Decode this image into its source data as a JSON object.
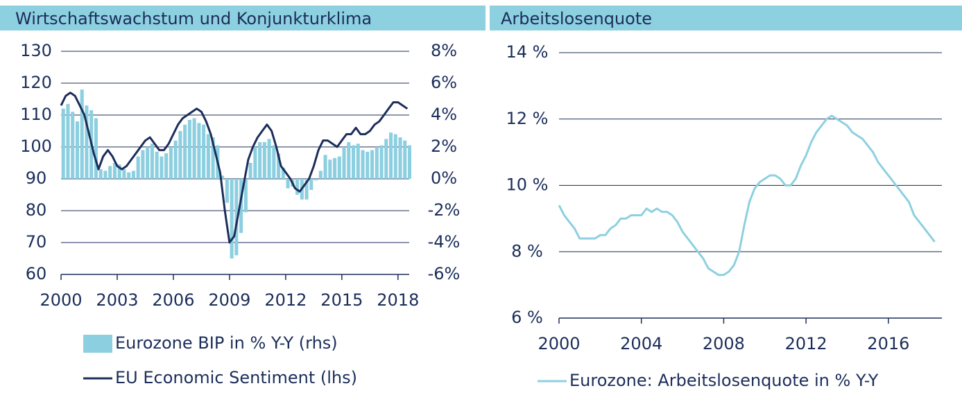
{
  "chart_data": [
    {
      "type": "combo",
      "title": "Wirtschaftswachstum und Konjunkturklima",
      "x": [
        2000,
        2000.25,
        2000.5,
        2000.75,
        2001,
        2001.25,
        2001.5,
        2001.75,
        2002,
        2002.25,
        2002.5,
        2002.75,
        2003,
        2003.25,
        2003.5,
        2003.75,
        2004,
        2004.25,
        2004.5,
        2004.75,
        2005,
        2005.25,
        2005.5,
        2005.75,
        2006,
        2006.25,
        2006.5,
        2006.75,
        2007,
        2007.25,
        2007.5,
        2007.75,
        2008,
        2008.25,
        2008.5,
        2008.75,
        2009,
        2009.25,
        2009.5,
        2009.75,
        2010,
        2010.25,
        2010.5,
        2010.75,
        2011,
        2011.25,
        2011.5,
        2011.75,
        2012,
        2012.25,
        2012.5,
        2012.75,
        2013,
        2013.25,
        2013.5,
        2013.75,
        2014,
        2014.25,
        2014.5,
        2014.75,
        2015,
        2015.25,
        2015.5,
        2015.75,
        2016,
        2016.25,
        2016.5,
        2016.75,
        2017,
        2017.25,
        2017.5,
        2017.75,
        2018,
        2018.25,
        2018.5
      ],
      "series": [
        {
          "name": "Eurozone BIP in % Y-Y (rhs)",
          "kind": "bar",
          "axis": "y2",
          "color": "#8ccfe0",
          "values": [
            4.4,
            4.7,
            4.2,
            3.6,
            5.6,
            4.6,
            4.3,
            3.8,
            0.6,
            0.5,
            0.8,
            1.0,
            0.9,
            0.6,
            0.4,
            0.5,
            1.4,
            1.8,
            2.0,
            2.2,
            1.7,
            1.4,
            1.6,
            2.0,
            2.4,
            3.0,
            3.4,
            3.7,
            3.8,
            3.5,
            3.4,
            2.8,
            2.6,
            2.1,
            0.2,
            -1.5,
            -5.0,
            -4.8,
            -3.4,
            -2.1,
            1.0,
            2.0,
            2.3,
            2.3,
            2.5,
            2.1,
            1.6,
            0.7,
            -0.6,
            -0.5,
            -1.0,
            -1.3,
            -1.3,
            -0.7,
            -0.1,
            0.5,
            1.5,
            1.2,
            1.3,
            1.4,
            2.0,
            2.3,
            2.1,
            2.2,
            1.8,
            1.7,
            1.8,
            2.0,
            2.1,
            2.5,
            2.9,
            2.8,
            2.6,
            2.4,
            2.1
          ]
        },
        {
          "name": "EU Economic Sentiment (lhs)",
          "kind": "line",
          "color": "#1b2d5a",
          "values": [
            113,
            116,
            117,
            116,
            113,
            110,
            104,
            98,
            93,
            97,
            99,
            97,
            94,
            93,
            94,
            96,
            98,
            100,
            102,
            103,
            101,
            99,
            99,
            101,
            104,
            107,
            109,
            110,
            111,
            112,
            111,
            108,
            104,
            98,
            92,
            80,
            70,
            72,
            80,
            88,
            96,
            100,
            103,
            105,
            107,
            105,
            100,
            94,
            92,
            90,
            87,
            86,
            88,
            90,
            94,
            99,
            102,
            102,
            101,
            100,
            102,
            104,
            104,
            106,
            104,
            104,
            105,
            107,
            108,
            110,
            112,
            114,
            114,
            113,
            112
          ]
        }
      ],
      "xlim": [
        2000,
        2018.6
      ],
      "xticks": [
        2000,
        2003,
        2006,
        2009,
        2012,
        2015,
        2018
      ],
      "ylim": [
        60,
        130
      ],
      "yticks": [
        60,
        70,
        80,
        90,
        100,
        110,
        120,
        130
      ],
      "y2lim": [
        -6,
        8
      ],
      "y2ticks": [
        {
          "value": -6,
          "label": "-6%"
        },
        {
          "value": -4,
          "label": "-4%"
        },
        {
          "value": -2,
          "label": "-2%"
        },
        {
          "value": 0,
          "label": "0%"
        },
        {
          "value": 2,
          "label": "2%"
        },
        {
          "value": 4,
          "label": "4%"
        },
        {
          "value": 6,
          "label": "6%"
        },
        {
          "value": 8,
          "label": "8%"
        }
      ],
      "grid": true
    },
    {
      "type": "line",
      "title": "Arbeitslosenquote",
      "x": [
        2000,
        2000.25,
        2000.5,
        2000.75,
        2001,
        2001.25,
        2001.5,
        2001.75,
        2002,
        2002.25,
        2002.5,
        2002.75,
        2003,
        2003.25,
        2003.5,
        2003.75,
        2004,
        2004.25,
        2004.5,
        2004.75,
        2005,
        2005.25,
        2005.5,
        2005.75,
        2006,
        2006.25,
        2006.5,
        2006.75,
        2007,
        2007.25,
        2007.5,
        2007.75,
        2008,
        2008.25,
        2008.5,
        2008.75,
        2009,
        2009.25,
        2009.5,
        2009.75,
        2010,
        2010.25,
        2010.5,
        2010.75,
        2011,
        2011.25,
        2011.5,
        2011.75,
        2012,
        2012.25,
        2012.5,
        2012.75,
        2013,
        2013.25,
        2013.5,
        2013.75,
        2014,
        2014.25,
        2014.5,
        2014.75,
        2015,
        2015.25,
        2015.5,
        2015.75,
        2016,
        2016.25,
        2016.5,
        2016.75,
        2017,
        2017.25,
        2017.5,
        2017.75,
        2018,
        2018.25
      ],
      "series": [
        {
          "name": "Eurozone: Arbeitslosenquote in % Y-Y",
          "color": "#8dd0e0",
          "values": [
            9.4,
            9.1,
            8.9,
            8.7,
            8.4,
            8.4,
            8.4,
            8.4,
            8.5,
            8.5,
            8.7,
            8.8,
            9.0,
            9.0,
            9.1,
            9.1,
            9.1,
            9.3,
            9.2,
            9.3,
            9.2,
            9.2,
            9.1,
            8.9,
            8.6,
            8.4,
            8.2,
            8.0,
            7.8,
            7.5,
            7.4,
            7.3,
            7.3,
            7.4,
            7.6,
            8.0,
            8.8,
            9.5,
            9.9,
            10.1,
            10.2,
            10.3,
            10.3,
            10.2,
            10.0,
            10.0,
            10.2,
            10.6,
            10.9,
            11.3,
            11.6,
            11.8,
            12.0,
            12.1,
            12.0,
            11.9,
            11.8,
            11.6,
            11.5,
            11.4,
            11.2,
            11.0,
            10.7,
            10.5,
            10.3,
            10.1,
            9.9,
            9.7,
            9.5,
            9.1,
            8.9,
            8.7,
            8.5,
            8.3
          ]
        }
      ],
      "xlim": [
        2000,
        2018.6
      ],
      "xticks": [
        2000,
        2004,
        2008,
        2012,
        2016
      ],
      "ylim": [
        6,
        14
      ],
      "yticks": [
        {
          "value": 6,
          "label": "6 %"
        },
        {
          "value": 8,
          "label": "8 %"
        },
        {
          "value": 10,
          "label": "10 %"
        },
        {
          "value": 12,
          "label": "12 %"
        },
        {
          "value": 14,
          "label": "14 %"
        }
      ],
      "grid": true
    }
  ]
}
